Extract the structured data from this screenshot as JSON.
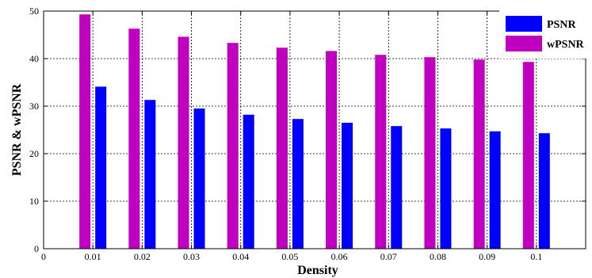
{
  "chart_data": {
    "type": "bar",
    "xlabel": "Density",
    "ylabel": "PSNR & wPSNR",
    "ylim": [
      0,
      50
    ],
    "xlim": [
      0,
      0.11
    ],
    "x_ticks": [
      "0",
      "0.01",
      "0.02",
      "0.03",
      "0.04",
      "0.05",
      "0.06",
      "0.07",
      "0.08",
      "0.09",
      "0.1"
    ],
    "y_ticks": [
      "0",
      "10",
      "20",
      "30",
      "40",
      "50"
    ],
    "categories": [
      "0.01",
      "0.02",
      "0.03",
      "0.04",
      "0.05",
      "0.06",
      "0.07",
      "0.08",
      "0.09",
      "0.1"
    ],
    "grid": true,
    "legend_position": "top-right",
    "series": [
      {
        "name": "PSNR",
        "color": "#0000ff",
        "values": [
          34.1,
          31.3,
          29.5,
          28.2,
          27.3,
          26.5,
          25.8,
          25.3,
          24.7,
          24.3
        ]
      },
      {
        "name": "wPSNR",
        "color": "#bf00bf",
        "values": [
          49.3,
          46.3,
          44.6,
          43.3,
          42.3,
          41.6,
          40.8,
          40.3,
          39.8,
          39.3
        ]
      }
    ]
  }
}
